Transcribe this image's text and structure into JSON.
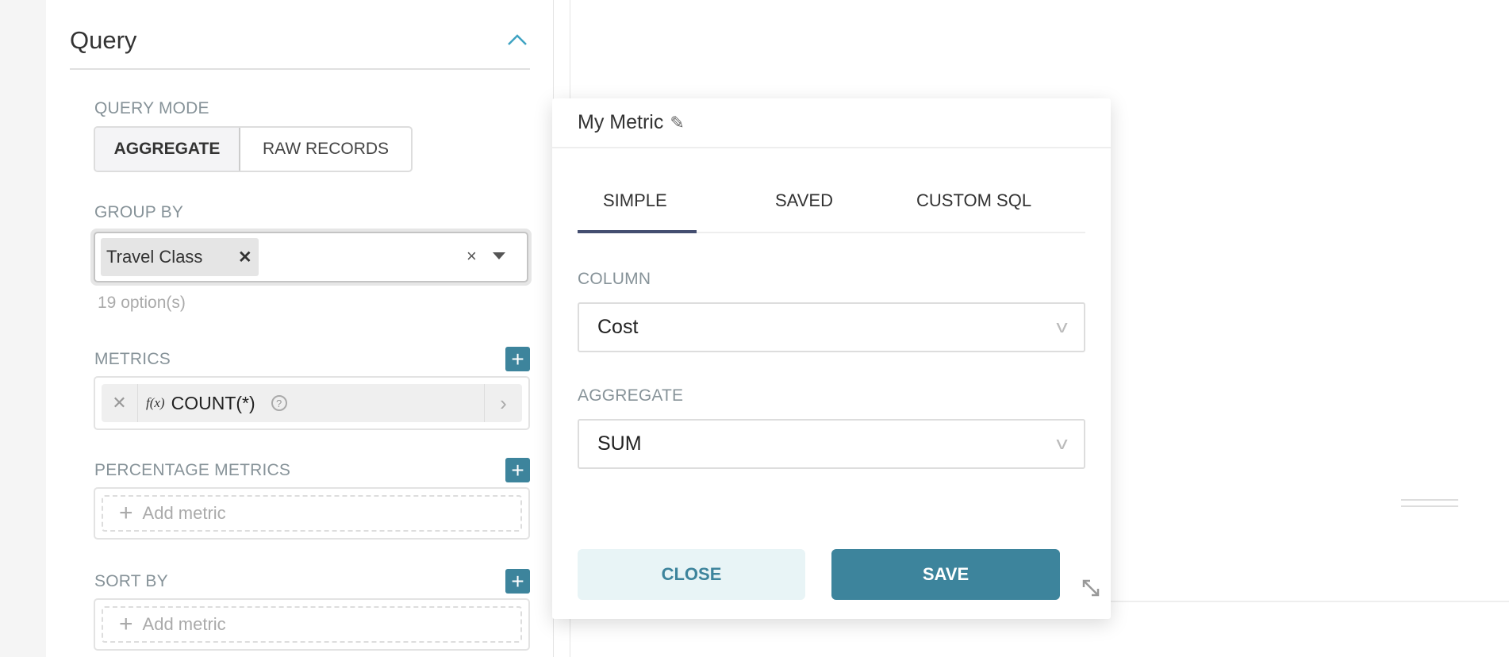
{
  "query_panel": {
    "title": "Query",
    "query_mode": {
      "label": "QUERY MODE",
      "options": [
        "AGGREGATE",
        "RAW RECORDS"
      ],
      "selected": "AGGREGATE"
    },
    "group_by": {
      "label": "GROUP BY",
      "tags": [
        "Travel Class"
      ],
      "hint": "19 option(s)"
    },
    "metrics": {
      "label": "METRICS",
      "items": [
        {
          "prefix": "f(x)",
          "name": "COUNT(*)"
        }
      ]
    },
    "percentage_metrics": {
      "label": "PERCENTAGE METRICS",
      "placeholder": "Add metric"
    },
    "sort_by": {
      "label": "SORT BY",
      "placeholder": "Add metric"
    }
  },
  "metric_popover": {
    "title": "My Metric",
    "tabs": [
      "SIMPLE",
      "SAVED",
      "CUSTOM SQL"
    ],
    "active_tab": "SIMPLE",
    "column": {
      "label": "COLUMN",
      "value": "Cost"
    },
    "aggregate": {
      "label": "AGGREGATE",
      "value": "SUM"
    },
    "close_label": "CLOSE",
    "save_label": "SAVE"
  },
  "colors": {
    "accent": "#3d849c",
    "close_bg": "#e8f4f6",
    "tab_underline": "#444e70"
  }
}
